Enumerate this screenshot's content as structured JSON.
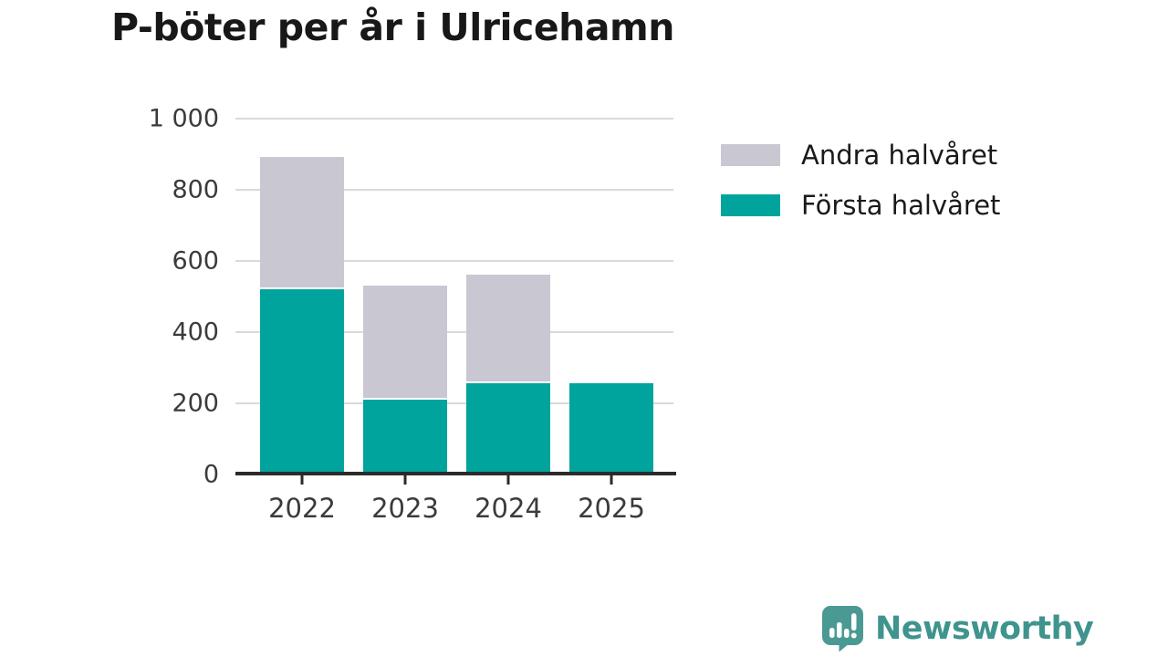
{
  "title": "P-böter per år i Ulricehamn",
  "chart_data": {
    "type": "bar",
    "stacked": true,
    "title": "P-böter per år i Ulricehamn",
    "xlabel": "",
    "ylabel": "",
    "categories": [
      "2022",
      "2023",
      "2024",
      "2025"
    ],
    "series": [
      {
        "name": "Första halvåret",
        "color": "#00a49c",
        "values": [
          520,
          210,
          256,
          256
        ]
      },
      {
        "name": "Andra halvåret",
        "color": "#c9c7d1",
        "values": [
          372,
          322,
          306,
          0
        ]
      }
    ],
    "totals": [
      892,
      532,
      562,
      256
    ],
    "ylim": [
      0,
      1000
    ],
    "yticks": [
      {
        "value": 0,
        "label": "0"
      },
      {
        "value": 200,
        "label": "200"
      },
      {
        "value": 400,
        "label": "400"
      },
      {
        "value": 600,
        "label": "600"
      },
      {
        "value": 800,
        "label": "800"
      },
      {
        "value": 1000,
        "label": "1 000"
      }
    ],
    "grid": true,
    "legend_position": "right"
  },
  "legend": {
    "items": [
      {
        "label": "Andra halvåret",
        "color": "#c9c7d1"
      },
      {
        "label": "Första halvåret",
        "color": "#00a49c"
      }
    ]
  },
  "branding": {
    "wordmark": "Newsworthy",
    "color": "#3f948d",
    "icon": "newsworthy-logo-icon"
  },
  "colors": {
    "background": "#ffffff",
    "gridline": "#dadada",
    "axis": "#2b2b2b",
    "tick_text": "#3b3b3b",
    "title_text": "#181818"
  }
}
